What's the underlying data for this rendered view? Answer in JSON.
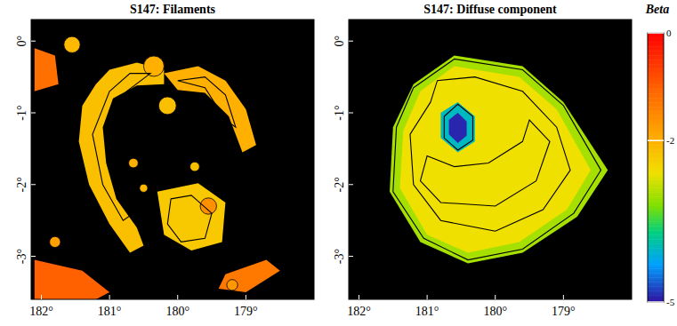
{
  "chart_data": [
    {
      "type": "map",
      "title": "S147: Filaments",
      "xlim": [
        182.15,
        178.0
      ],
      "ylim": [
        -3.6,
        0.3
      ],
      "xticks": [
        {
          "value": 182,
          "label": "182°"
        },
        {
          "value": 181,
          "label": "181°"
        },
        {
          "value": 180,
          "label": "180°"
        },
        {
          "value": 179,
          "label": "179°"
        }
      ],
      "yticks": [
        {
          "value": 0,
          "label": "0°"
        },
        {
          "value": -1,
          "label": "-1°"
        },
        {
          "value": -2,
          "label": "-2°"
        },
        {
          "value": -3,
          "label": "-3°"
        }
      ],
      "regions": [
        {
          "value": -2.2,
          "points": [
            [
              181.2,
              -0.6
            ],
            [
              181.0,
              -0.4
            ],
            [
              180.6,
              -0.3
            ],
            [
              180.2,
              -0.4
            ],
            [
              180.2,
              -0.6
            ],
            [
              180.6,
              -0.62
            ],
            [
              180.95,
              -0.8
            ],
            [
              181.1,
              -1.2
            ],
            [
              181.05,
              -1.7
            ],
            [
              180.9,
              -2.2
            ],
            [
              180.6,
              -2.6
            ],
            [
              180.5,
              -2.85
            ],
            [
              180.7,
              -2.95
            ],
            [
              181.0,
              -2.55
            ],
            [
              181.3,
              -2.0
            ],
            [
              181.45,
              -1.4
            ],
            [
              181.4,
              -0.9
            ]
          ]
        },
        {
          "value": -2.0,
          "points": [
            [
              180.2,
              -0.45
            ],
            [
              179.7,
              -0.35
            ],
            [
              179.3,
              -0.55
            ],
            [
              179.0,
              -0.95
            ],
            [
              178.85,
              -1.45
            ],
            [
              179.05,
              -1.55
            ],
            [
              179.25,
              -1.05
            ],
            [
              179.6,
              -0.72
            ],
            [
              180.0,
              -0.68
            ]
          ]
        },
        {
          "value": -2.3,
          "points": [
            [
              180.3,
              -2.1
            ],
            [
              179.7,
              -1.98
            ],
            [
              179.3,
              -2.25
            ],
            [
              179.35,
              -2.8
            ],
            [
              179.8,
              -2.92
            ],
            [
              180.2,
              -2.7
            ]
          ]
        },
        {
          "value": -1.0,
          "points": [
            [
              182.1,
              -3.05
            ],
            [
              181.4,
              -3.2
            ],
            [
              181.0,
              -3.5
            ],
            [
              181.2,
              -3.6
            ],
            [
              182.1,
              -3.6
            ]
          ]
        },
        {
          "value": -1.3,
          "points": [
            [
              179.3,
              -3.25
            ],
            [
              178.7,
              -3.05
            ],
            [
              178.5,
              -3.2
            ],
            [
              179.0,
              -3.5
            ],
            [
              179.4,
              -3.45
            ]
          ]
        },
        {
          "value": -1.2,
          "points": [
            [
              182.1,
              -0.1
            ],
            [
              181.8,
              -0.2
            ],
            [
              181.75,
              -0.6
            ],
            [
              182.1,
              -0.7
            ]
          ]
        }
      ],
      "spots": [
        {
          "lon": 181.55,
          "lat": -0.05,
          "r": 0.12,
          "value": -2.1
        },
        {
          "lon": 180.15,
          "lat": -0.9,
          "r": 0.13,
          "value": -2.2
        },
        {
          "lon": 180.35,
          "lat": -0.35,
          "r": 0.15,
          "value": -2.0
        },
        {
          "lon": 179.75,
          "lat": -1.75,
          "r": 0.07,
          "value": -2.2
        },
        {
          "lon": 180.65,
          "lat": -1.7,
          "r": 0.07,
          "value": -2.0
        },
        {
          "lon": 179.55,
          "lat": -2.3,
          "r": 0.12,
          "value": -1.6
        },
        {
          "lon": 179.2,
          "lat": -3.4,
          "r": 0.08,
          "value": -1.7
        },
        {
          "lon": 181.8,
          "lat": -2.8,
          "r": 0.08,
          "value": -1.8
        },
        {
          "lon": 180.5,
          "lat": -2.05,
          "r": 0.06,
          "value": -2.1
        }
      ],
      "contours": [
        [
          [
            181.0,
            -0.7
          ],
          [
            180.7,
            -0.45
          ],
          [
            180.4,
            -0.45
          ],
          [
            180.75,
            -0.7
          ],
          [
            181.0,
            -1.2
          ],
          [
            180.9,
            -1.9
          ],
          [
            180.65,
            -2.4
          ],
          [
            180.8,
            -2.5
          ],
          [
            181.1,
            -2.0
          ],
          [
            181.25,
            -1.3
          ]
        ],
        [
          [
            180.1,
            -2.2
          ],
          [
            179.8,
            -2.15
          ],
          [
            179.5,
            -2.4
          ],
          [
            179.6,
            -2.75
          ],
          [
            179.95,
            -2.8
          ],
          [
            180.15,
            -2.55
          ]
        ],
        [
          [
            180.0,
            -0.55
          ],
          [
            179.6,
            -0.5
          ],
          [
            179.3,
            -0.75
          ],
          [
            179.15,
            -1.2
          ],
          [
            179.3,
            -1.1
          ],
          [
            179.6,
            -0.65
          ]
        ]
      ]
    },
    {
      "type": "map",
      "title": "S147: Diffuse component",
      "xlim": [
        182.15,
        178.0
      ],
      "ylim": [
        -3.6,
        0.3
      ],
      "xticks": [
        {
          "value": 182,
          "label": "182°"
        },
        {
          "value": 181,
          "label": "181°"
        },
        {
          "value": 180,
          "label": "180°"
        },
        {
          "value": 179,
          "label": "179°"
        }
      ],
      "yticks": [
        {
          "value": 0,
          "label": "0°"
        },
        {
          "value": -1,
          "label": "-1°"
        },
        {
          "value": -2,
          "label": "-2°"
        },
        {
          "value": -3,
          "label": "-3°"
        }
      ],
      "regions": [
        {
          "value": -3.0,
          "points": [
            [
              181.2,
              -0.6
            ],
            [
              180.6,
              -0.2
            ],
            [
              179.6,
              -0.35
            ],
            [
              179.0,
              -0.85
            ],
            [
              178.35,
              -1.8
            ],
            [
              178.8,
              -2.45
            ],
            [
              179.6,
              -2.95
            ],
            [
              180.4,
              -3.1
            ],
            [
              181.1,
              -2.8
            ],
            [
              181.55,
              -2.1
            ],
            [
              181.5,
              -1.2
            ]
          ]
        },
        {
          "value": -2.6,
          "points": [
            [
              181.1,
              -0.7
            ],
            [
              180.6,
              -0.35
            ],
            [
              179.65,
              -0.5
            ],
            [
              179.1,
              -0.95
            ],
            [
              178.6,
              -1.8
            ],
            [
              178.95,
              -2.35
            ],
            [
              179.65,
              -2.8
            ],
            [
              180.4,
              -2.95
            ],
            [
              181.0,
              -2.7
            ],
            [
              181.4,
              -2.05
            ],
            [
              181.35,
              -1.25
            ]
          ]
        },
        {
          "value": -4.0,
          "points": [
            [
              180.8,
              -1.0
            ],
            [
              180.55,
              -0.85
            ],
            [
              180.3,
              -1.05
            ],
            [
              180.3,
              -1.4
            ],
            [
              180.55,
              -1.55
            ],
            [
              180.8,
              -1.35
            ]
          ]
        },
        {
          "value": -4.9,
          "points": [
            [
              180.68,
              -1.1
            ],
            [
              180.55,
              -1.0
            ],
            [
              180.42,
              -1.12
            ],
            [
              180.42,
              -1.32
            ],
            [
              180.55,
              -1.42
            ],
            [
              180.68,
              -1.3
            ]
          ]
        }
      ],
      "spots": [],
      "contours": [
        [
          [
            181.2,
            -0.65
          ],
          [
            180.6,
            -0.25
          ],
          [
            179.6,
            -0.4
          ],
          [
            179.0,
            -0.9
          ],
          [
            178.45,
            -1.8
          ],
          [
            178.85,
            -2.4
          ],
          [
            179.6,
            -2.9
          ],
          [
            180.4,
            -3.05
          ],
          [
            181.05,
            -2.75
          ],
          [
            181.5,
            -2.1
          ],
          [
            181.45,
            -1.2
          ]
        ],
        [
          [
            180.95,
            -0.85
          ],
          [
            180.85,
            -0.55
          ],
          [
            180.3,
            -0.5
          ],
          [
            179.6,
            -0.7
          ],
          [
            179.1,
            -1.2
          ],
          [
            178.9,
            -1.8
          ],
          [
            179.3,
            -2.35
          ],
          [
            180.0,
            -2.65
          ],
          [
            180.8,
            -2.5
          ],
          [
            181.2,
            -2.0
          ],
          [
            181.25,
            -1.3
          ]
        ],
        [
          [
            181.0,
            -1.6
          ],
          [
            180.6,
            -1.75
          ],
          [
            180.1,
            -1.7
          ],
          [
            179.6,
            -1.4
          ],
          [
            179.5,
            -1.1
          ],
          [
            179.2,
            -1.4
          ],
          [
            179.4,
            -1.95
          ],
          [
            180.0,
            -2.3
          ],
          [
            180.8,
            -2.25
          ],
          [
            181.1,
            -1.95
          ]
        ],
        [
          [
            180.75,
            -1.05
          ],
          [
            180.55,
            -0.88
          ],
          [
            180.33,
            -1.05
          ],
          [
            180.33,
            -1.38
          ],
          [
            180.55,
            -1.52
          ],
          [
            180.75,
            -1.35
          ]
        ]
      ],
      "colorbar": {
        "label": "Beta",
        "range": [
          -5,
          0
        ],
        "ticks": [
          0,
          -2,
          -5
        ]
      }
    }
  ]
}
